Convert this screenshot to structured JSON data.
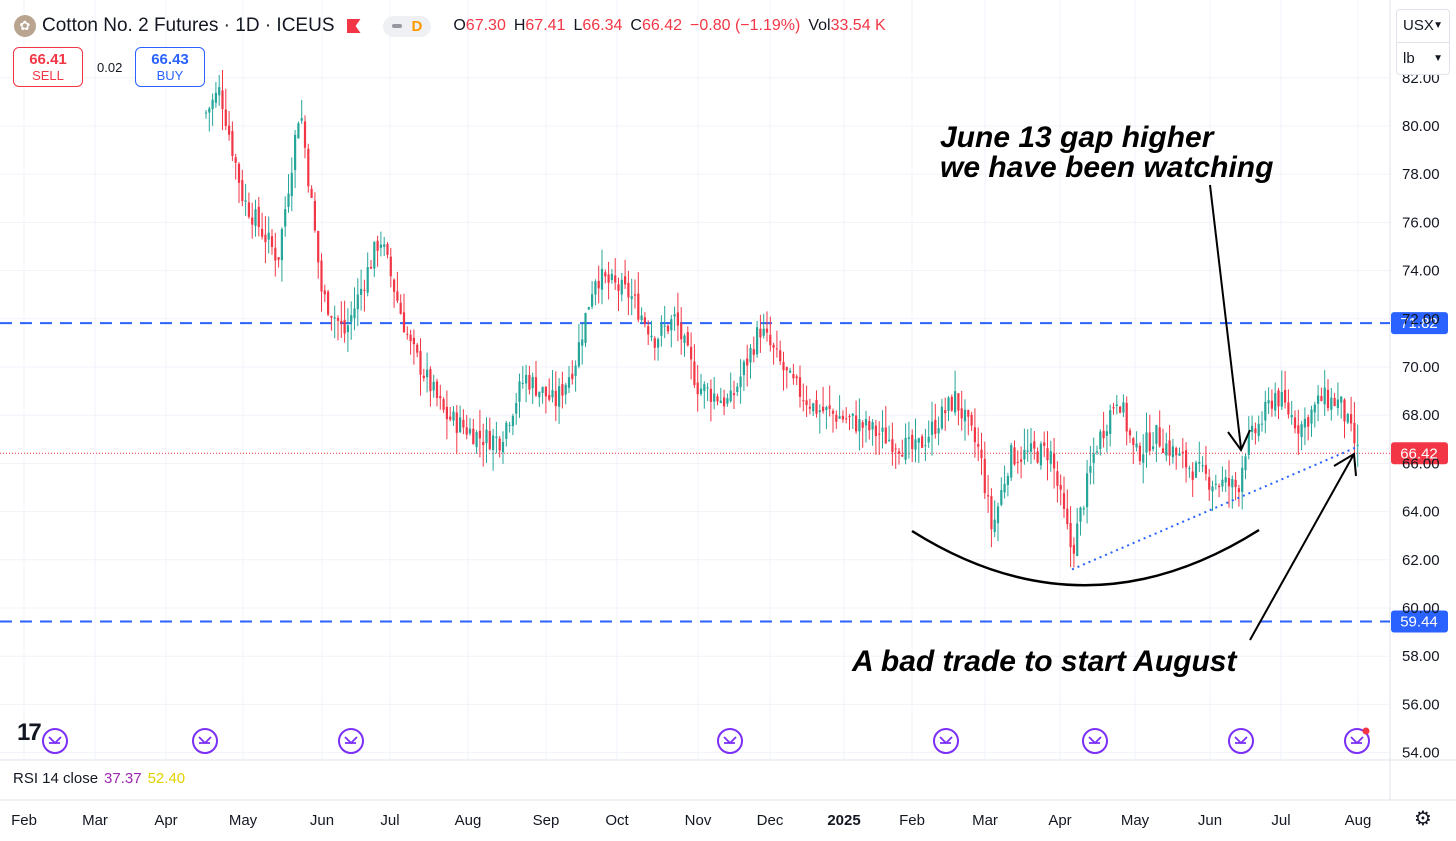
{
  "header": {
    "logo_icon": "cotton-boll-icon",
    "title": "Cotton No. 2 Futures · 1D · ICEUS",
    "flag_icon": "red-flag-icon",
    "delay_badge": "D",
    "open_label": "O",
    "open": "67.30",
    "high_label": "H",
    "high": "67.41",
    "low_label": "L",
    "low": "66.34",
    "close_label": "C",
    "close": "66.42",
    "change": "−0.80 (−1.19%)",
    "vol_label": "Vol",
    "volume": "33.54 K"
  },
  "trade": {
    "sell_price": "66.41",
    "sell_label": "SELL",
    "spread": "0.02",
    "buy_price": "66.43",
    "buy_label": "BUY"
  },
  "units": {
    "currency": "USX",
    "unit": "lb"
  },
  "rsi": {
    "label": "RSI 14 close",
    "value1": "37.37",
    "value2": "52.40"
  },
  "branding": {
    "tv_logo": "17",
    "settings_icon": "gear-icon"
  },
  "colors": {
    "up": "#26a69a",
    "down": "#f23645",
    "level": "#2962ff",
    "price_line": "#f23645",
    "event": "#7b2ff7"
  },
  "chart_data": {
    "type": "candlestick",
    "title": "Cotton No. 2 Futures · 1D · ICEUS",
    "ylim": [
      53.3,
      82.8
    ],
    "y_ticks": [
      "54.00",
      "56.00",
      "58.00",
      "60.00",
      "62.00",
      "64.00",
      "66.00",
      "68.00",
      "70.00",
      "72.00",
      "74.00",
      "76.00",
      "78.00",
      "80.00",
      "82.00"
    ],
    "x_ticks": [
      "Feb",
      "Mar",
      "Apr",
      "May",
      "Jun",
      "Jul",
      "Aug",
      "Sep",
      "Oct",
      "Nov",
      "Dec",
      "2025",
      "Feb",
      "Mar",
      "Apr",
      "May",
      "Jun",
      "Jul",
      "Aug"
    ],
    "series": [
      {
        "values": [
          {
            "x": "Apr",
            "y": 81.5
          },
          {
            "x": "May",
            "y": 77.0
          },
          {
            "x": "late May",
            "y": 74.5
          },
          {
            "x": "early Jun",
            "y": 80.9
          },
          {
            "x": "Jun",
            "y": 73.0
          },
          {
            "x": "late Jun",
            "y": 71.4
          },
          {
            "x": "early Jul",
            "y": 75.4
          },
          {
            "x": "Jul",
            "y": 70.9
          },
          {
            "x": "Aug",
            "y": 68.0
          },
          {
            "x": "late Aug",
            "y": 67.1
          },
          {
            "x": "Sep",
            "y": 69.6
          },
          {
            "x": "mid Sep",
            "y": 68.5
          },
          {
            "x": "late Sep",
            "y": 73.8
          },
          {
            "x": "Oct",
            "y": 73.0
          },
          {
            "x": "mid Oct",
            "y": 71.2
          },
          {
            "x": "Nov",
            "y": 69.2
          },
          {
            "x": "late Nov",
            "y": 71.6
          },
          {
            "x": "Dec",
            "y": 69.4
          },
          {
            "x": "late Dec",
            "y": 68.3
          },
          {
            "x": "2025",
            "y": 67.8
          },
          {
            "x": "late Jan",
            "y": 66.5
          },
          {
            "x": "early Feb",
            "y": 68.7
          },
          {
            "x": "Feb",
            "y": 66.4
          },
          {
            "x": "early Mar",
            "y": 63.2
          },
          {
            "x": "Mar",
            "y": 66.3
          },
          {
            "x": "early Apr",
            "y": 62.3
          },
          {
            "x": "Apr",
            "y": 66.6
          },
          {
            "x": "late Apr",
            "y": 68.9
          },
          {
            "x": "May",
            "y": 66.3
          },
          {
            "x": "mid May",
            "y": 67.2
          },
          {
            "x": "Jun",
            "y": 65.3
          },
          {
            "x": "mid Jun",
            "y": 66.6
          },
          {
            "x": "late Jun",
            "y": 68.3
          },
          {
            "x": "Jul",
            "y": 68.9
          },
          {
            "x": "mid Jul",
            "y": 67.5
          },
          {
            "x": "late Jul",
            "y": 68.7
          },
          {
            "x": "Aug",
            "y": 66.42
          }
        ]
      }
    ],
    "levels": [
      {
        "value": "71.82",
        "style": "dashed"
      },
      {
        "value": "59.44",
        "style": "dashed"
      }
    ],
    "last_price": "66.42",
    "annotations": [
      {
        "text": "June 13 gap higher\nwe have been watching"
      },
      {
        "text": "A bad trade to start August"
      }
    ],
    "grid": true
  }
}
